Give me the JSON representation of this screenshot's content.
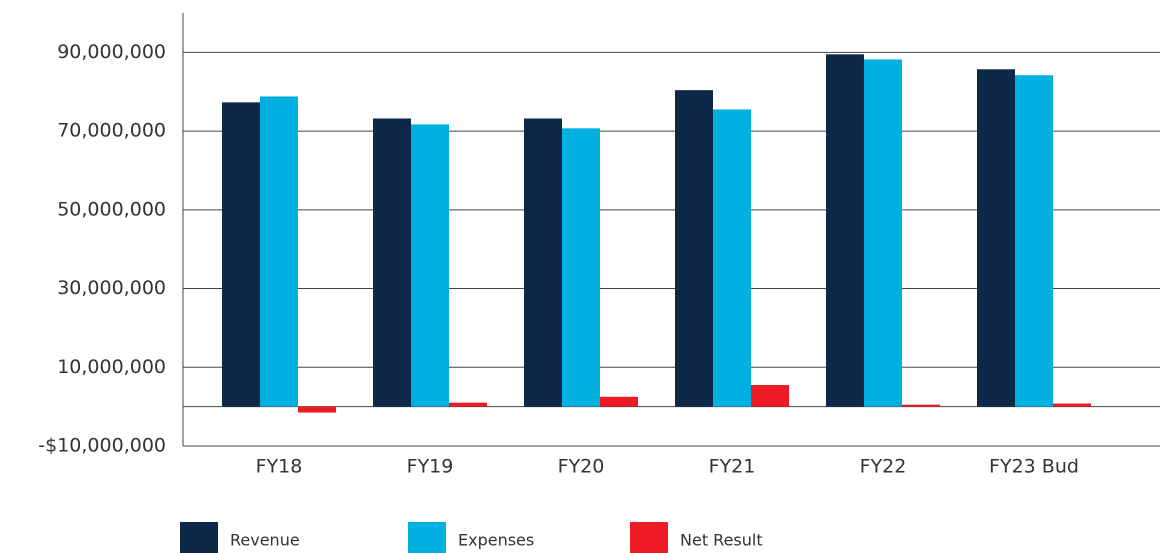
{
  "chart_data": {
    "type": "bar",
    "categories": [
      "FY18",
      "FY19",
      "FY20",
      "FY21",
      "FY22",
      "FY23 Bud"
    ],
    "series": [
      {
        "name": "Revenue",
        "color": "#0d2849",
        "values": [
          77300000,
          73200000,
          73200000,
          80400000,
          89500000,
          85700000
        ]
      },
      {
        "name": "Expenses",
        "color": "#00b0e0",
        "values": [
          78800000,
          71700000,
          70700000,
          75500000,
          88200000,
          84200000
        ]
      },
      {
        "name": "Net Result",
        "color": "#ed1c24",
        "values": [
          -1500000,
          1000000,
          2500000,
          5500000,
          500000,
          800000
        ]
      }
    ],
    "ylim": [
      -10000000,
      100000000
    ],
    "yticks": [
      {
        "value": -10000000,
        "label": "-$10,000,000"
      },
      {
        "value": 10000000,
        "label": "10,000,000"
      },
      {
        "value": 30000000,
        "label": "30,000,000"
      },
      {
        "value": 50000000,
        "label": "50,000,000"
      },
      {
        "value": 70000000,
        "label": "70,000,000"
      },
      {
        "value": 90000000,
        "label": "90,000,000"
      }
    ],
    "grid": true,
    "legend": "bottom"
  }
}
